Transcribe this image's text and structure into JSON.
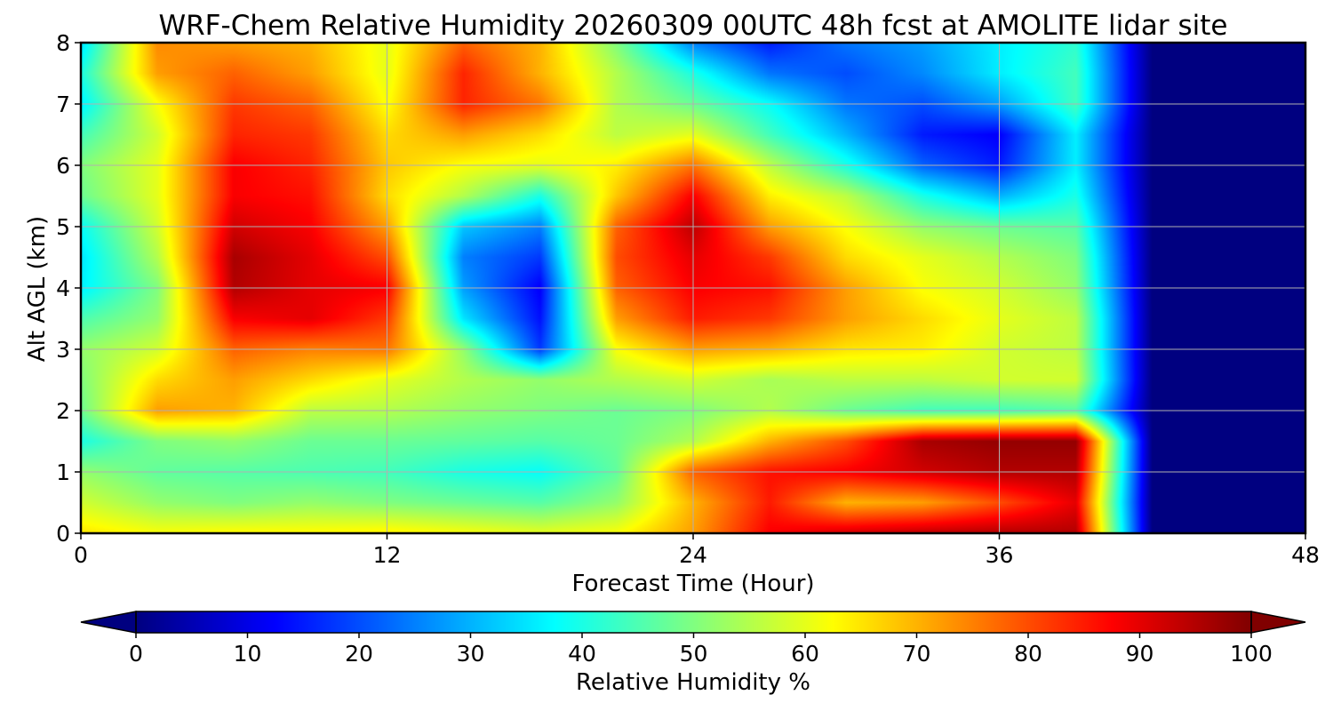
{
  "chart_data": {
    "type": "heatmap",
    "title": "WRF-Chem Relative Humidity 20260309 00UTC 48h fcst at AMOLITE lidar site",
    "xlabel": "Forecast Time (Hour)",
    "ylabel": "Alt AGL (km)",
    "xlim": [
      0,
      48
    ],
    "ylim": [
      0,
      8
    ],
    "xticks": [
      0,
      12,
      24,
      36,
      48
    ],
    "yticks": [
      0,
      1,
      2,
      3,
      4,
      5,
      6,
      7,
      8
    ],
    "grid": true,
    "colorbar": {
      "label": "Relative Humidity %",
      "colormap": "jet",
      "range": [
        0,
        100
      ],
      "ticks": [
        0,
        10,
        20,
        30,
        40,
        50,
        60,
        70,
        80,
        90,
        100
      ],
      "extend": "both",
      "orientation": "horizontal"
    },
    "z_units": "%",
    "x": [
      0,
      3,
      6,
      9,
      12,
      15,
      18,
      21,
      24,
      27,
      30,
      33,
      36,
      39,
      42,
      45,
      48
    ],
    "y": [
      0,
      0.5,
      1,
      1.5,
      2,
      2.5,
      3,
      3.5,
      4,
      4.5,
      5,
      5.5,
      6,
      6.5,
      7,
      7.5,
      8
    ],
    "z": [
      [
        65,
        62,
        63,
        63,
        64,
        62,
        60,
        62,
        72,
        88,
        92,
        94,
        95,
        95,
        0,
        0,
        0
      ],
      [
        58,
        52,
        50,
        52,
        50,
        48,
        46,
        52,
        70,
        85,
        70,
        72,
        80,
        90,
        0,
        0,
        0
      ],
      [
        52,
        47,
        46,
        45,
        44,
        40,
        38,
        47,
        78,
        86,
        88,
        92,
        95,
        95,
        0,
        0,
        0
      ],
      [
        40,
        50,
        52,
        48,
        48,
        47,
        46,
        48,
        55,
        70,
        80,
        96,
        98,
        98,
        0,
        0,
        0
      ],
      [
        48,
        72,
        70,
        56,
        55,
        52,
        50,
        48,
        50,
        55,
        48,
        44,
        44,
        46,
        0,
        0,
        0
      ],
      [
        50,
        66,
        72,
        66,
        60,
        55,
        52,
        55,
        58,
        54,
        56,
        56,
        58,
        58,
        0,
        0,
        0
      ],
      [
        52,
        58,
        78,
        75,
        76,
        52,
        18,
        62,
        72,
        70,
        65,
        64,
        58,
        56,
        0,
        0,
        0
      ],
      [
        45,
        52,
        88,
        90,
        82,
        35,
        14,
        72,
        85,
        82,
        72,
        66,
        60,
        56,
        0,
        0,
        0
      ],
      [
        36,
        50,
        95,
        90,
        88,
        28,
        12,
        78,
        88,
        86,
        72,
        62,
        58,
        52,
        0,
        0,
        0
      ],
      [
        35,
        55,
        96,
        90,
        80,
        25,
        18,
        80,
        90,
        82,
        66,
        60,
        55,
        50,
        0,
        0,
        0
      ],
      [
        38,
        58,
        92,
        88,
        72,
        32,
        25,
        78,
        94,
        72,
        62,
        52,
        48,
        46,
        0,
        0,
        0
      ],
      [
        48,
        60,
        88,
        86,
        66,
        55,
        40,
        68,
        88,
        64,
        56,
        40,
        30,
        40,
        0,
        0,
        0
      ],
      [
        50,
        60,
        88,
        84,
        68,
        62,
        60,
        64,
        76,
        56,
        40,
        22,
        15,
        36,
        0,
        0,
        0
      ],
      [
        44,
        58,
        84,
        82,
        66,
        72,
        66,
        56,
        60,
        44,
        30,
        15,
        12,
        36,
        0,
        0,
        0
      ],
      [
        36,
        62,
        82,
        78,
        62,
        84,
        76,
        55,
        48,
        38,
        24,
        20,
        28,
        44,
        0,
        0,
        0
      ],
      [
        40,
        72,
        78,
        72,
        60,
        84,
        70,
        55,
        40,
        24,
        20,
        26,
        36,
        44,
        0,
        0,
        0
      ],
      [
        34,
        74,
        72,
        70,
        60,
        78,
        70,
        50,
        25,
        15,
        24,
        28,
        36,
        42,
        0,
        0,
        0
      ]
    ]
  }
}
